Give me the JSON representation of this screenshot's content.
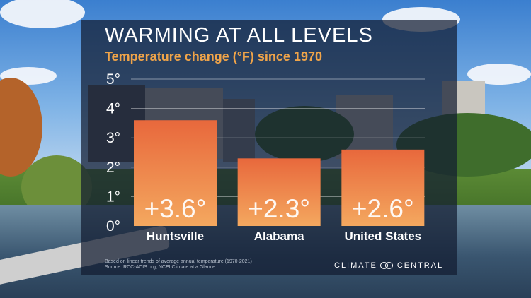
{
  "title": "WARMING AT ALL LEVELS",
  "subtitle": "Temperature change (°F) since 1970",
  "footnote": {
    "line1": "Based on linear trends of average annual temperature (1970-2021)",
    "line2": "Source: RCC-ACIS.org, NCEI Climate at a Glance"
  },
  "brand": {
    "left": "CLIMATE",
    "right": "CENTRAL",
    "icon": "infinity-logo-icon"
  },
  "colors": {
    "bar_top": "#e8683c",
    "bar_bottom": "#f4a85f",
    "subtitle": "#f0a449",
    "panel": "#121c30"
  },
  "chart_data": {
    "type": "bar",
    "title": "WARMING AT ALL LEVELS",
    "subtitle": "Temperature change (°F) since 1970",
    "categories": [
      "Huntsville",
      "Alabama",
      "United States"
    ],
    "values": [
      3.6,
      2.3,
      2.6
    ],
    "value_labels": [
      "+3.6°",
      "+2.3°",
      "+2.6°"
    ],
    "yticks": [
      0,
      1,
      2,
      3,
      4,
      5
    ],
    "ytick_labels": [
      "0°",
      "1°",
      "2°",
      "3°",
      "4°",
      "5°"
    ],
    "ylim": [
      0,
      5
    ],
    "grid": true,
    "legend": "none"
  }
}
